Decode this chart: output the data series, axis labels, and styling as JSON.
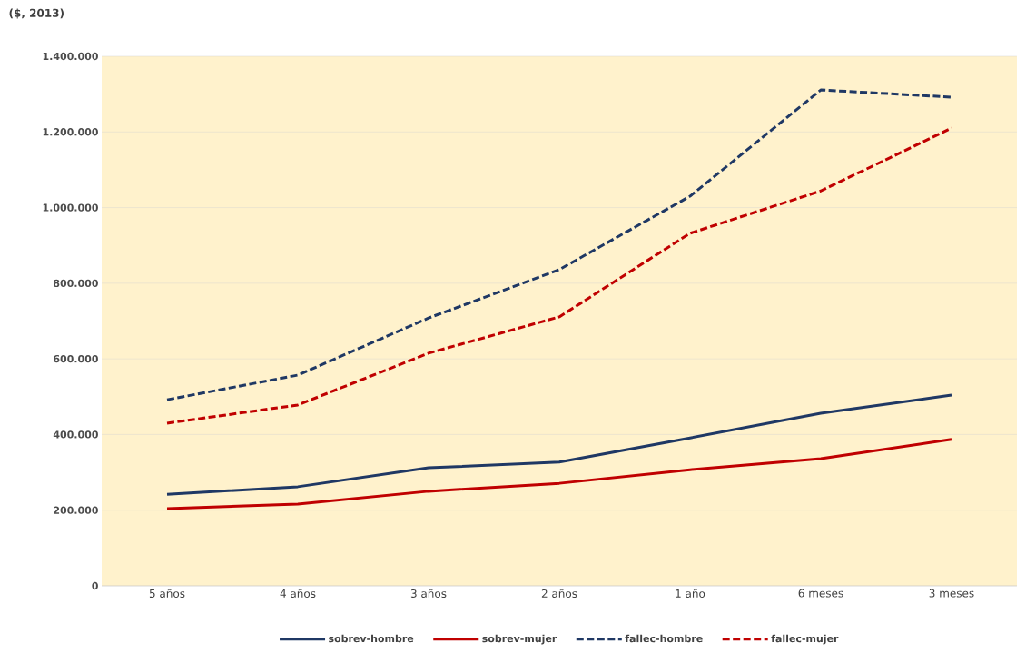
{
  "chart_data": {
    "type": "line",
    "ylabel": "($, 2013)",
    "categories": [
      "5 años",
      "4 años",
      "3 años",
      "2 años",
      "1 año",
      "6 meses",
      "3 meses"
    ],
    "series": [
      {
        "name": "sobrev-hombre",
        "color": "#1f3864",
        "line_style": "solid",
        "values": [
          242000,
          262000,
          312000,
          327000,
          391000,
          456000,
          504000
        ]
      },
      {
        "name": "sobrev-mujer",
        "color": "#c00000",
        "line_style": "solid",
        "values": [
          204000,
          216000,
          250000,
          271000,
          307000,
          336000,
          387000
        ]
      },
      {
        "name": "fallec-hombre",
        "color": "#1f3864",
        "line_style": "dashed",
        "values": [
          492000,
          557000,
          708000,
          836000,
          1030000,
          1311000,
          1292000
        ]
      },
      {
        "name": "fallec-mujer",
        "color": "#c00000",
        "line_style": "dashed",
        "values": [
          430000,
          478000,
          615000,
          711000,
          932000,
          1044000,
          1210000
        ]
      }
    ],
    "ylim": [
      0,
      1400000
    ],
    "yticks": [
      {
        "value": 0,
        "label": "0"
      },
      {
        "value": 200000,
        "label": "200.000"
      },
      {
        "value": 400000,
        "label": "400.000"
      },
      {
        "value": 600000,
        "label": "600.000"
      },
      {
        "value": 800000,
        "label": "800.000"
      },
      {
        "value": 1000000,
        "label": "1.000.000"
      },
      {
        "value": 1200000,
        "label": "1.200.000"
      },
      {
        "value": 1400000,
        "label": "1.400.000"
      }
    ],
    "grid": "y",
    "legend": "bottom",
    "marker": "none"
  }
}
